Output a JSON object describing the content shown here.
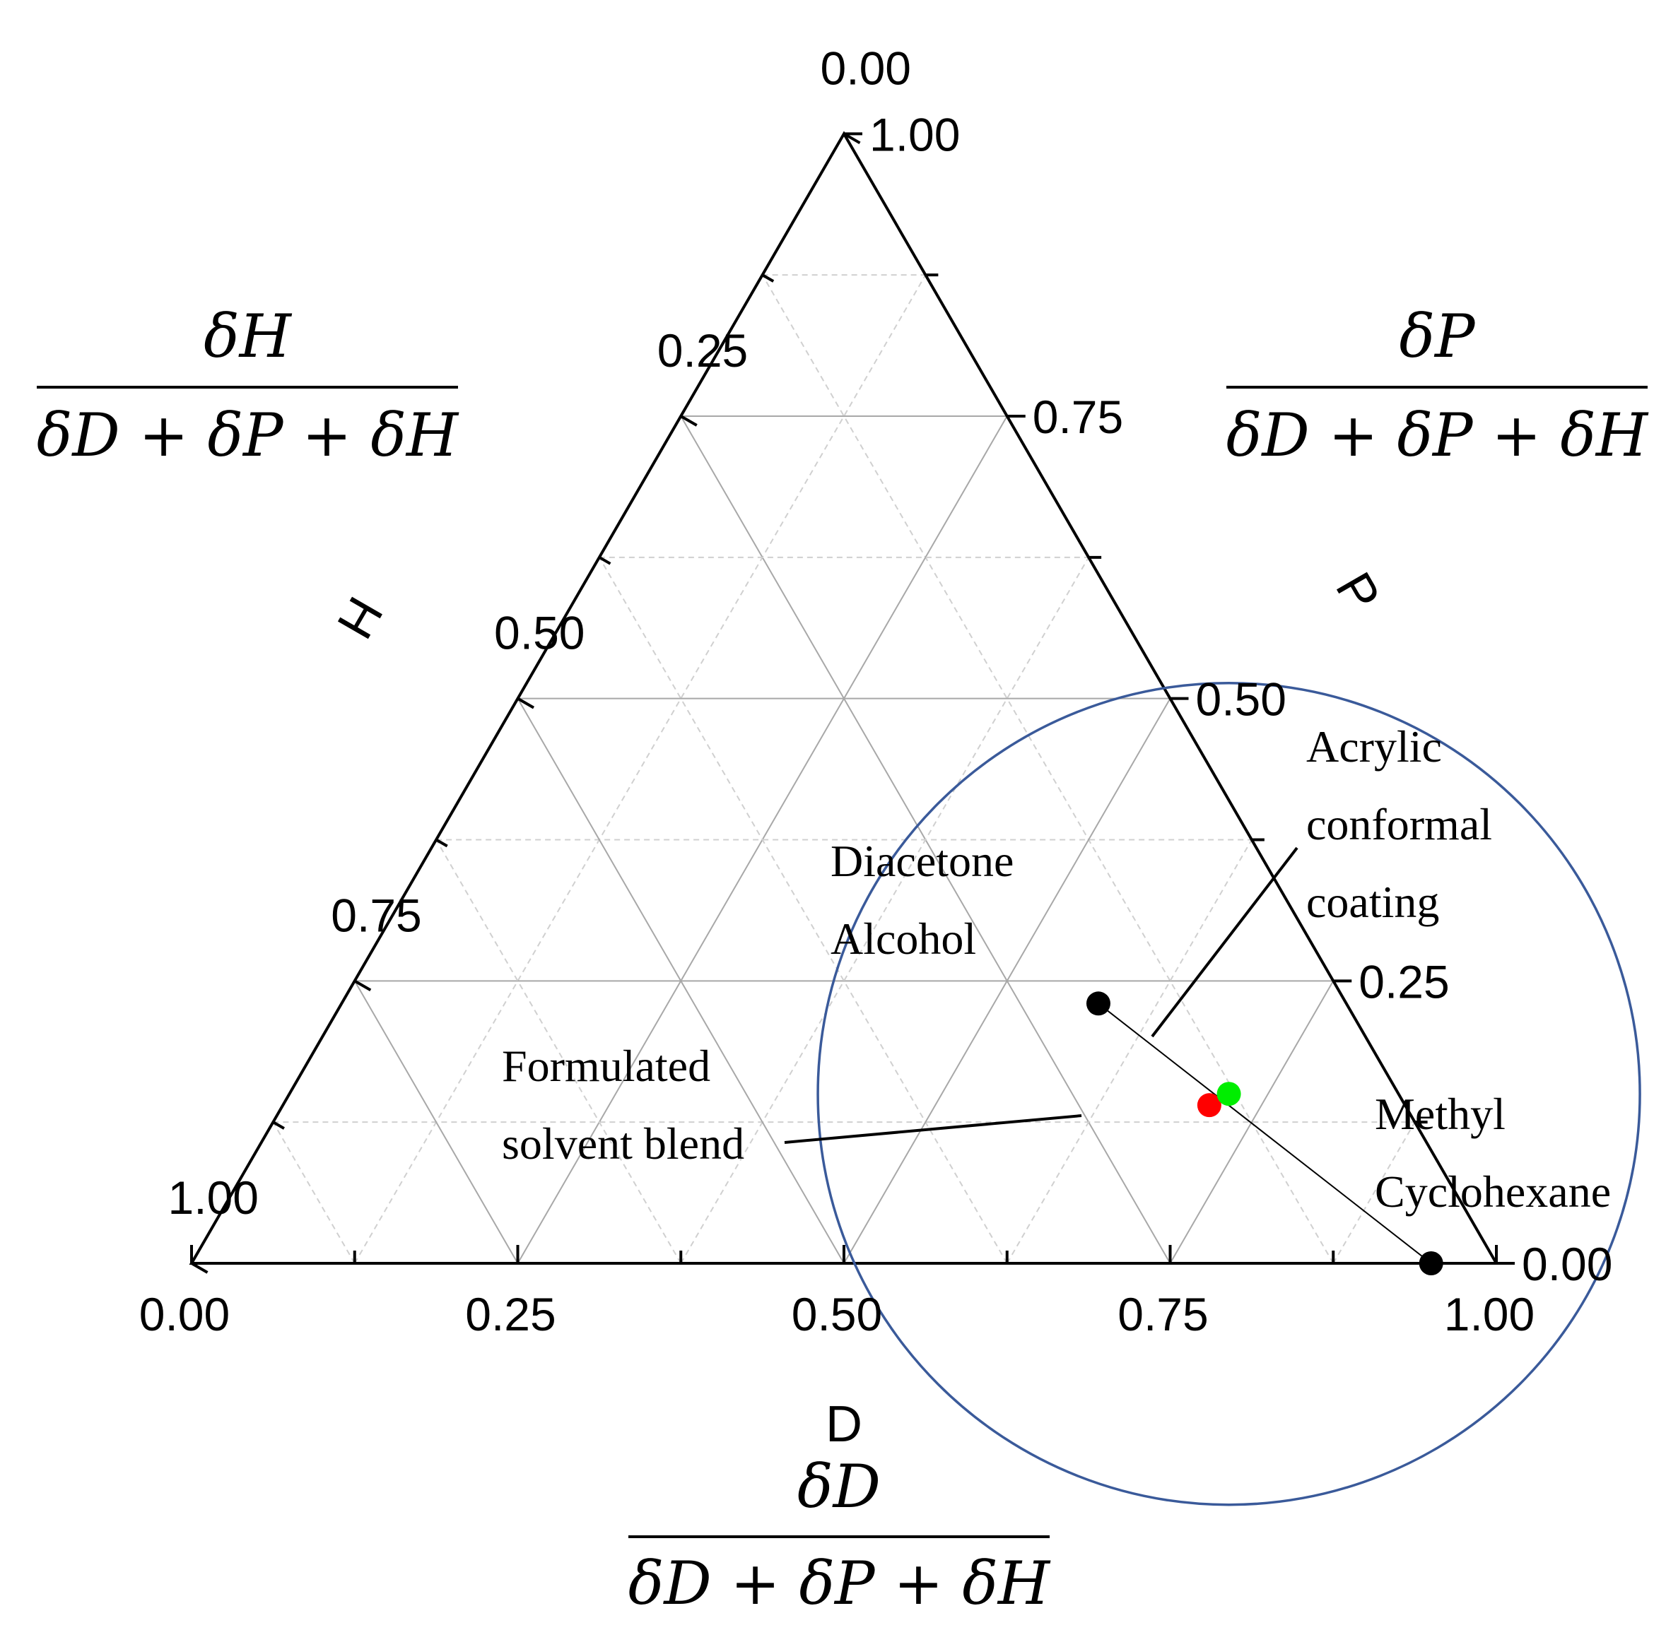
{
  "chart_data": {
    "type": "scatter",
    "subtype": "ternary",
    "axes": {
      "bottom": {
        "name": "D",
        "ticks": [
          "0.00",
          "0.25",
          "0.50",
          "0.75",
          "1.00"
        ],
        "fraction": {
          "num": "δD",
          "den": "δD + δP + δH"
        }
      },
      "right": {
        "name": "P",
        "ticks": [
          "0.00",
          "0.25",
          "0.50",
          "0.75",
          "1.00"
        ],
        "fraction": {
          "num": "δP",
          "den": "δD + δP + δH"
        }
      },
      "left": {
        "name": "H",
        "ticks": [
          "0.00",
          "0.25",
          "0.50",
          "0.75",
          "1.00"
        ],
        "fraction": {
          "num": "δH",
          "den": "δD + δP + δH"
        }
      }
    },
    "grid": true,
    "points": [
      {
        "id": "diacetone-alcohol",
        "label_lines": [
          "Diacetone",
          "Alcohol"
        ],
        "D": 0.58,
        "P": 0.23,
        "H": 0.19,
        "color": "#000000"
      },
      {
        "id": "methyl-cyclohexane",
        "label_lines": [
          "Methyl",
          "Cyclohexane"
        ],
        "D": 0.95,
        "P": 0.0,
        "H": 0.05,
        "color": "#000000"
      },
      {
        "id": "formulated-solvent-blend",
        "label_lines": [
          "Formulated",
          "solvent blend"
        ],
        "D": 0.71,
        "P": 0.14,
        "H": 0.15,
        "color": "#ff0000"
      },
      {
        "id": "acrylic-conformal-coating",
        "label_lines": [
          "Acrylic",
          "conformal",
          "coating"
        ],
        "D": 0.72,
        "P": 0.15,
        "H": 0.13,
        "color": "#00ee00"
      }
    ],
    "mixing_line": {
      "from": "diacetone-alcohol",
      "to": "methyl-cyclohexane",
      "color": "#000000"
    },
    "solubility_sphere": {
      "center": {
        "D": 0.72,
        "P": 0.15,
        "H": 0.13
      },
      "radius": 0.315,
      "color": "#3a5a9a"
    }
  }
}
